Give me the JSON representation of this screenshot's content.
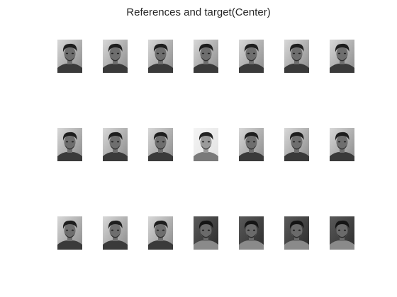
{
  "figure": {
    "title": "References and target(Center)"
  },
  "images": [
    {
      "row": 0,
      "col": 0,
      "tone": "gray-photo",
      "role": "reference"
    },
    {
      "row": 0,
      "col": 1,
      "tone": "gray-photo",
      "role": "reference"
    },
    {
      "row": 0,
      "col": 2,
      "tone": "gray-photo",
      "role": "reference"
    },
    {
      "row": 0,
      "col": 3,
      "tone": "gray-photo",
      "role": "reference"
    },
    {
      "row": 0,
      "col": 4,
      "tone": "gray-photo",
      "role": "reference"
    },
    {
      "row": 0,
      "col": 5,
      "tone": "gray-photo",
      "role": "reference"
    },
    {
      "row": 0,
      "col": 6,
      "tone": "gray-photo",
      "role": "reference"
    },
    {
      "row": 1,
      "col": 0,
      "tone": "gray-photo",
      "role": "reference"
    },
    {
      "row": 1,
      "col": 1,
      "tone": "gray-photo",
      "role": "reference"
    },
    {
      "row": 1,
      "col": 2,
      "tone": "gray-photo",
      "role": "reference"
    },
    {
      "row": 1,
      "col": 3,
      "tone": "light-photo",
      "role": "target"
    },
    {
      "row": 1,
      "col": 4,
      "tone": "gray-photo",
      "role": "reference"
    },
    {
      "row": 1,
      "col": 5,
      "tone": "gray-photo",
      "role": "reference"
    },
    {
      "row": 1,
      "col": 6,
      "tone": "gray-photo",
      "role": "reference"
    },
    {
      "row": 2,
      "col": 0,
      "tone": "gray-photo",
      "role": "reference"
    },
    {
      "row": 2,
      "col": 1,
      "tone": "gray-photo",
      "role": "reference"
    },
    {
      "row": 2,
      "col": 2,
      "tone": "gray-photo",
      "role": "reference"
    },
    {
      "row": 2,
      "col": 3,
      "tone": "dark-photo",
      "role": "reference"
    },
    {
      "row": 2,
      "col": 4,
      "tone": "dark-photo",
      "role": "reference"
    },
    {
      "row": 2,
      "col": 5,
      "tone": "dark-photo",
      "role": "reference"
    },
    {
      "row": 2,
      "col": 6,
      "tone": "dark-photo",
      "role": "reference"
    }
  ]
}
